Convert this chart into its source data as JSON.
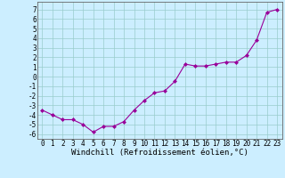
{
  "x": [
    0,
    1,
    2,
    3,
    4,
    5,
    6,
    7,
    8,
    9,
    10,
    11,
    12,
    13,
    14,
    15,
    16,
    17,
    18,
    19,
    20,
    21,
    22,
    23
  ],
  "y": [
    -3.5,
    -4.0,
    -4.5,
    -4.5,
    -5.0,
    -5.8,
    -5.2,
    -5.2,
    -4.7,
    -3.5,
    -2.5,
    -1.7,
    -1.5,
    -0.5,
    1.3,
    1.1,
    1.1,
    1.3,
    1.5,
    1.5,
    2.2,
    3.8,
    6.7,
    7.0
  ],
  "xlabel": "Windchill (Refroidissement éolien,°C)",
  "yticks": [
    -6,
    -5,
    -4,
    -3,
    -2,
    -1,
    0,
    1,
    2,
    3,
    4,
    5,
    6,
    7
  ],
  "xticks": [
    0,
    1,
    2,
    3,
    4,
    5,
    6,
    7,
    8,
    9,
    10,
    11,
    12,
    13,
    14,
    15,
    16,
    17,
    18,
    19,
    20,
    21,
    22,
    23
  ],
  "ylim": [
    -6.5,
    7.8
  ],
  "xlim": [
    -0.5,
    23.5
  ],
  "line_color": "#990099",
  "marker_color": "#990099",
  "bg_color": "#cceeff",
  "grid_color": "#99cccc",
  "tick_fontsize": 5.5,
  "xlabel_fontsize": 6.5
}
